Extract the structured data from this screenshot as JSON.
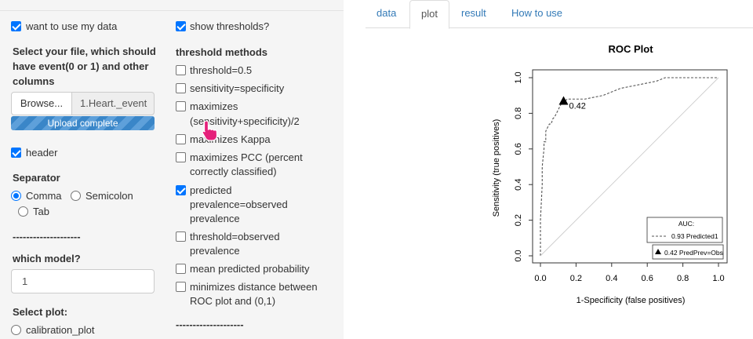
{
  "sidebar": {
    "use_my_data": {
      "label": "want to use my data",
      "checked": true
    },
    "file_section_label": "Select your file, which should have event(0 or 1) and other columns",
    "file_section_lines": [
      "Select your file, which should",
      "have event(0 or 1) and other",
      "columns"
    ],
    "browse_label": "Browse...",
    "file_name": "1.Heart._event",
    "upload_status": "Upload complete",
    "header": {
      "label": "header",
      "checked": true
    },
    "separator_label": "Separator",
    "separator_options": [
      {
        "label": "Comma",
        "selected": true
      },
      {
        "label": "Semicolon",
        "selected": false
      },
      {
        "label": "Tab",
        "selected": false
      }
    ],
    "divider_text": "--------------------",
    "model_label": "which model?",
    "model_value": "1",
    "plot_label": "Select plot:",
    "plot_options": [
      {
        "label": "calibration_plot",
        "selected": false
      }
    ],
    "show_thresholds": {
      "label": "show thresholds?",
      "checked": true
    },
    "threshold_methods_label": "threshold methods",
    "threshold_methods": [
      {
        "lines": [
          "threshold=0.5"
        ],
        "checked": false
      },
      {
        "lines": [
          "sensitivity=specificity"
        ],
        "checked": false
      },
      {
        "lines": [
          "maximizes",
          "(sensitivity+specificity)/2"
        ],
        "checked": false
      },
      {
        "lines": [
          "maximizes Kappa"
        ],
        "checked": false
      },
      {
        "lines": [
          "maximizes PCC (percent",
          "correctly classified)"
        ],
        "checked": false
      },
      {
        "lines": [
          "predicted",
          "prevalence=observed",
          "prevalence"
        ],
        "checked": true
      },
      {
        "lines": [
          "threshold=observed",
          "prevalence"
        ],
        "checked": false
      },
      {
        "lines": [
          "mean predicted probability"
        ],
        "checked": false
      },
      {
        "lines": [
          "minimizes distance between",
          "ROC plot and (0,1)"
        ],
        "checked": false
      }
    ],
    "divider_text_2": "--------------------"
  },
  "tabs": [
    {
      "label": "data",
      "active": false
    },
    {
      "label": "plot",
      "active": true
    },
    {
      "label": "result",
      "active": false
    },
    {
      "label": "How to use",
      "active": false
    }
  ],
  "chart_data": {
    "type": "line",
    "title": "ROC Plot",
    "xlabel": "1-Specificity (false positives)",
    "ylabel": "Sensitivity (true positives)",
    "xlim": [
      0,
      1
    ],
    "ylim": [
      0,
      1
    ],
    "xticks": [
      "0.0",
      "0.2",
      "0.4",
      "0.6",
      "0.8",
      "1.0"
    ],
    "yticks": [
      "0.0",
      "0.2",
      "0.4",
      "0.6",
      "0.8",
      "1.0"
    ],
    "series": [
      {
        "name": "Predicted1",
        "style": "dashed",
        "x": [
          0,
          0.0,
          0.01,
          0.01,
          0.02,
          0.02,
          0.03,
          0.03,
          0.04,
          0.05,
          0.06,
          0.07,
          0.08,
          0.09,
          0.1,
          0.11,
          0.12,
          0.13,
          0.14,
          0.15,
          0.16,
          0.2,
          0.25,
          0.3,
          0.35,
          0.4,
          0.45,
          0.5,
          0.55,
          0.6,
          0.65,
          0.7,
          0.75,
          0.8,
          0.85,
          0.9,
          1.0
        ],
        "y": [
          0,
          0.2,
          0.4,
          0.5,
          0.6,
          0.64,
          0.64,
          0.7,
          0.72,
          0.74,
          0.74,
          0.77,
          0.78,
          0.8,
          0.82,
          0.84,
          0.86,
          0.87,
          0.87,
          0.88,
          0.88,
          0.88,
          0.88,
          0.89,
          0.9,
          0.92,
          0.94,
          0.95,
          0.96,
          0.97,
          0.98,
          1.0,
          1.0,
          1.0,
          1.0,
          1.0,
          1.0
        ]
      },
      {
        "name": "diagonal",
        "style": "solid",
        "x": [
          0,
          1
        ],
        "y": [
          0,
          1
        ]
      }
    ],
    "threshold_point": {
      "x": 0.13,
      "y": 0.87,
      "label": "0.42"
    },
    "legend_auc_title": "AUC:",
    "legend_auc_entry": "0.93 Predicted1",
    "legend_threshold_entry": "0.42 PredPrev=Obs",
    "legend_placement": "bottom-right",
    "colors": {
      "curve": "#555555",
      "diagonal": "#cccccc",
      "box": "#333333"
    }
  }
}
